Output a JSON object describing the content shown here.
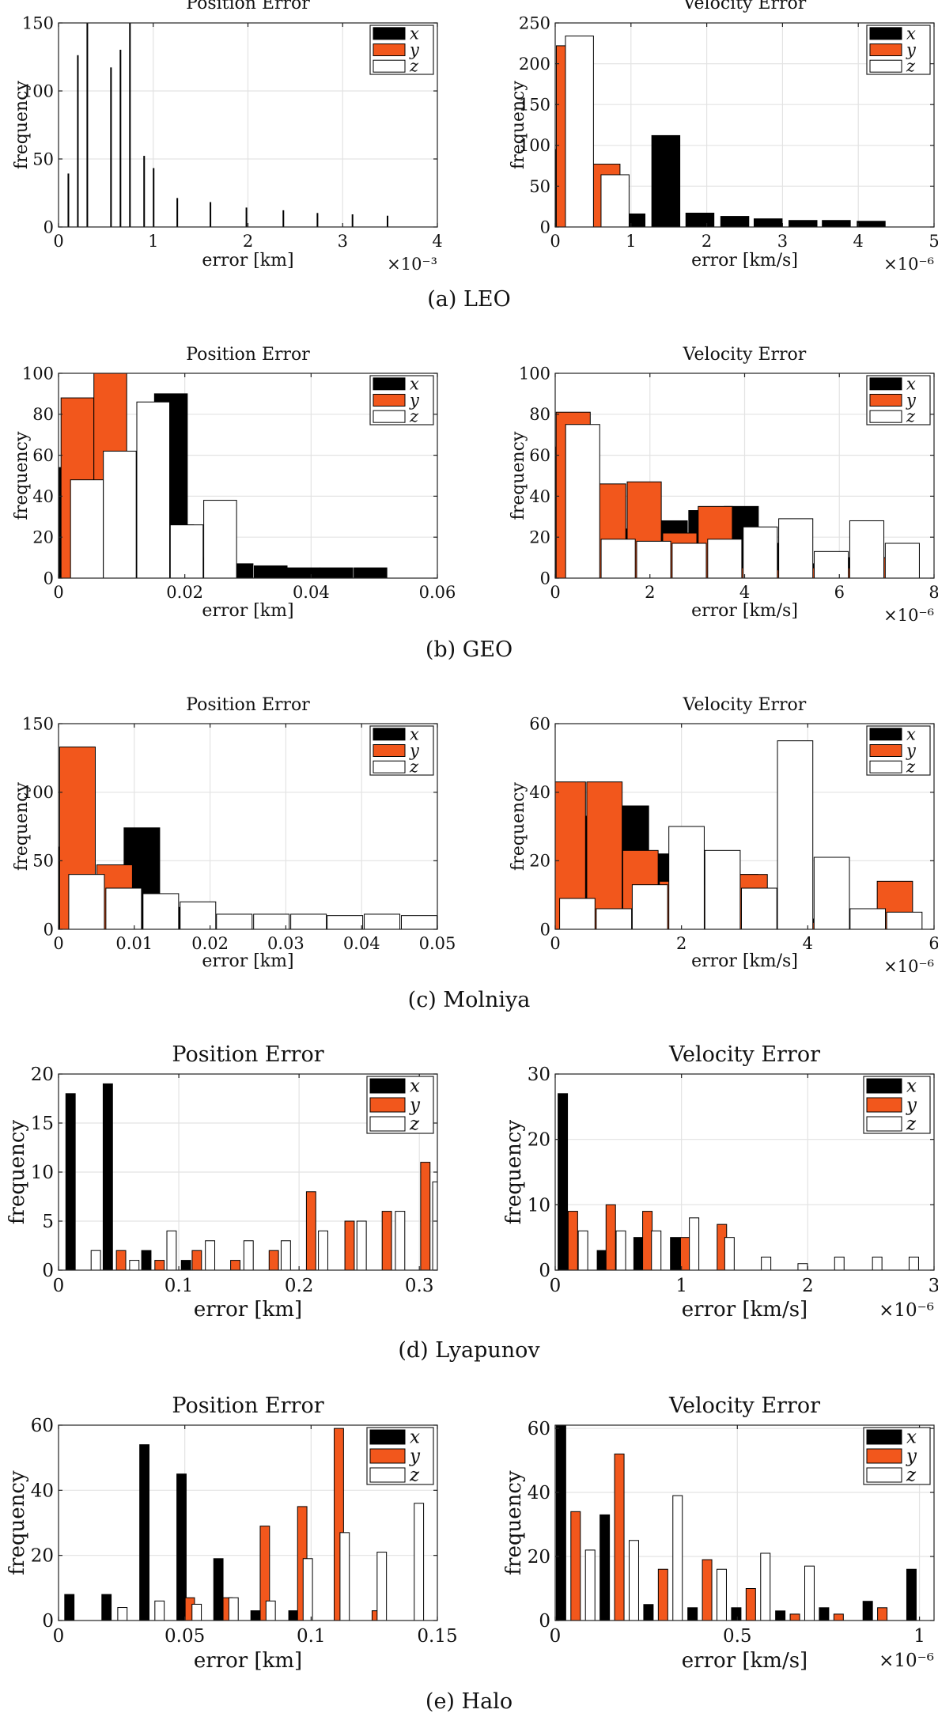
{
  "colors": {
    "x": "#000000",
    "y": "#f2571c",
    "z": "#ffffff",
    "outline": "#000000",
    "grid": "#e3e3e3"
  },
  "captions": [
    "(a) LEO",
    "(b) GEO",
    "(c) Molniya",
    "(d) Lyapunov",
    "(e) Halo"
  ],
  "chart_data": [
    {
      "type": "bar",
      "panel": "(a) LEO",
      "title": "Position Error",
      "xlabel": "error [km]",
      "ylabel": "frequency",
      "x_exponent": "×10⁻³",
      "xlim": [
        0,
        4
      ],
      "ylim": [
        0,
        150
      ],
      "xticks": [
        0,
        1,
        2,
        3,
        4
      ],
      "yticks": [
        0,
        50,
        100,
        150
      ],
      "bin_width": 0.00029,
      "grid": true,
      "legend": "top-right",
      "series": [
        {
          "name": "x",
          "centers": [
            0.1,
            0.55,
            0.9,
            1.25,
            1.6,
            1.98,
            2.37,
            2.73,
            3.1,
            3.47
          ],
          "values": [
            39,
            117,
            52,
            21,
            18,
            14,
            12,
            10,
            9,
            8
          ]
        },
        {
          "name": "y",
          "centers": [
            0.2,
            0.65,
            1.0
          ],
          "values": [
            126,
            130,
            43
          ]
        },
        {
          "name": "z",
          "centers": [
            0.3,
            0.75
          ],
          "values": [
            160,
            160
          ]
        }
      ]
    },
    {
      "type": "bar",
      "panel": "(a) LEO",
      "title": "Velocity Error",
      "xlabel": "error [km/s]",
      "ylabel": "frequency",
      "x_exponent": "×10⁻⁶",
      "xlim": [
        0,
        5
      ],
      "ylim": [
        0,
        250
      ],
      "xticks": [
        0,
        1,
        2,
        3,
        4,
        5
      ],
      "yticks": [
        0,
        50,
        100,
        150,
        200,
        250
      ],
      "bin_width": 0.37,
      "grid": true,
      "legend": "top-right",
      "series": [
        {
          "name": "x",
          "centers": [
            0.09,
            0.55,
            1.0,
            1.46,
            1.91,
            2.37,
            2.81,
            3.27,
            3.71,
            4.17
          ],
          "values": [
            95,
            14,
            16,
            112,
            17,
            13,
            10,
            8,
            8,
            7
          ]
        },
        {
          "name": "y",
          "centers": [
            0.2,
            0.67
          ],
          "values": [
            222,
            77
          ]
        },
        {
          "name": "z",
          "centers": [
            0.32,
            0.79
          ],
          "values": [
            234,
            64
          ]
        }
      ]
    },
    {
      "type": "bar",
      "panel": "(b) GEO",
      "title": "Position Error",
      "xlabel": "error [km]",
      "ylabel": "frequency",
      "x_exponent": "",
      "xlim": [
        0,
        0.06
      ],
      "ylim": [
        0,
        100
      ],
      "xticks": [
        0,
        0.02,
        0.04,
        0.06
      ],
      "yticks": [
        0,
        20,
        40,
        60,
        80,
        100
      ],
      "bin_width": 0.0052,
      "grid": true,
      "legend": "top-right",
      "series": [
        {
          "name": "x",
          "centers": [
            0.0015,
            0.0067,
            0.012,
            0.0178,
            0.023,
            0.0282,
            0.0336,
            0.0388,
            0.044,
            0.0494
          ],
          "values": [
            54,
            34,
            44,
            90,
            10,
            7,
            6,
            5,
            5,
            5
          ]
        },
        {
          "name": "y",
          "centers": [
            0.003,
            0.0082,
            0.0135,
            0.0188
          ],
          "values": [
            88,
            102,
            44,
            26
          ]
        },
        {
          "name": "z",
          "centers": [
            0.0045,
            0.0097,
            0.015,
            0.0203,
            0.0256
          ],
          "values": [
            48,
            62,
            86,
            26,
            38
          ]
        }
      ]
    },
    {
      "type": "bar",
      "panel": "(b) GEO",
      "title": "Velocity Error",
      "xlabel": "error [km/s]",
      "ylabel": "frequency",
      "x_exponent": "×10⁻⁶",
      "xlim": [
        0,
        8
      ],
      "ylim": [
        0,
        100
      ],
      "xticks": [
        0,
        2,
        4,
        6,
        8
      ],
      "yticks": [
        0,
        20,
        40,
        60,
        80,
        100
      ],
      "bin_width": 0.72,
      "grid": true,
      "legend": "top-right",
      "series": [
        {
          "name": "x",
          "centers": [
            0.18,
            0.93,
            1.68,
            2.43,
            3.18,
            3.93,
            4.68,
            5.43,
            6.18,
            6.93
          ],
          "values": [
            64,
            37,
            24,
            28,
            33,
            35,
            17,
            7,
            10,
            5
          ]
        },
        {
          "name": "y",
          "centers": [
            0.38,
            1.13,
            1.88,
            2.63,
            3.38,
            4.13,
            4.88,
            5.63,
            6.38,
            7.13
          ],
          "values": [
            81,
            46,
            47,
            22,
            35,
            5,
            4,
            5,
            5,
            10
          ]
        },
        {
          "name": "z",
          "centers": [
            0.58,
            1.33,
            2.08,
            2.83,
            3.58,
            4.33,
            5.08,
            5.83,
            6.58,
            7.33
          ],
          "values": [
            75,
            19,
            18,
            17,
            19,
            25,
            29,
            13,
            28,
            17
          ]
        }
      ]
    },
    {
      "type": "bar",
      "panel": "(c) Molniya",
      "title": "Position Error",
      "xlabel": "error [km]",
      "ylabel": "frequency",
      "x_exponent": "",
      "xlim": [
        0,
        0.05
      ],
      "ylim": [
        0,
        150
      ],
      "xticks": [
        0,
        0.01,
        0.02,
        0.03,
        0.04,
        0.05
      ],
      "yticks": [
        0,
        50,
        100,
        150
      ],
      "bin_width": 0.0047,
      "grid": true,
      "legend": "top-right",
      "series": [
        {
          "name": "x",
          "centers": [
            0.0013,
            0.0062,
            0.011,
            0.0159
          ],
          "values": [
            60,
            30,
            74,
            16
          ]
        },
        {
          "name": "y",
          "centers": [
            0.0025,
            0.0074
          ],
          "values": [
            133,
            47
          ]
        },
        {
          "name": "z",
          "centers": [
            0.0037,
            0.0086,
            0.0135,
            0.0184,
            0.0232,
            0.0281,
            0.033,
            0.0378,
            0.0427,
            0.0476
          ],
          "values": [
            40,
            30,
            26,
            20,
            11,
            11,
            11,
            10,
            11,
            10
          ]
        }
      ]
    },
    {
      "type": "bar",
      "panel": "(c) Molniya",
      "title": "Velocity Error",
      "xlabel": "error [km/s]",
      "ylabel": "frequency",
      "x_exponent": "×10⁻⁶",
      "xlim": [
        0,
        6
      ],
      "ylim": [
        0,
        60
      ],
      "xticks": [
        0,
        2,
        4,
        6
      ],
      "yticks": [
        0,
        20,
        40,
        60
      ],
      "bin_width": 0.56,
      "grid": true,
      "legend": "top-right",
      "series": [
        {
          "name": "x",
          "centers": [
            0.05,
            0.63,
            1.2,
            1.78,
            2.35,
            2.93,
            3.5,
            4.08
          ],
          "values": [
            39,
            33,
            36,
            22,
            22,
            16,
            9,
            3
          ]
        },
        {
          "name": "y",
          "centers": [
            0.2,
            0.78,
            1.35,
            1.93,
            2.5,
            3.08,
            3.65,
            4.23,
            4.8,
            5.38
          ],
          "values": [
            43,
            43,
            23,
            14,
            13,
            16,
            9,
            2,
            3,
            14
          ]
        },
        {
          "name": "z",
          "centers": [
            0.35,
            0.93,
            1.5,
            2.08,
            2.65,
            3.23,
            3.8,
            4.38,
            4.95,
            5.53
          ],
          "values": [
            9,
            6,
            13,
            30,
            23,
            12,
            55,
            21,
            6,
            5
          ]
        }
      ]
    },
    {
      "type": "bar",
      "panel": "(d) Lyapunov",
      "title": "Position Error",
      "xlabel": "error [km]",
      "ylabel": "frequency",
      "x_exponent": "",
      "xlim": [
        0,
        0.315
      ],
      "ylim": [
        0,
        20
      ],
      "xticks": [
        0,
        0.1,
        0.2,
        0.3
      ],
      "yticks": [
        0,
        5,
        10,
        15,
        20
      ],
      "bin_width": 0.0078,
      "grid": true,
      "legend": "top-right",
      "series": [
        {
          "name": "x",
          "centers": [
            0.01,
            0.041,
            0.073,
            0.106,
            0.138,
            0.169,
            0.201,
            0.232,
            0.264,
            0.295
          ],
          "values": [
            18,
            19,
            2,
            1,
            0,
            0,
            0,
            0,
            0,
            0
          ]
        },
        {
          "name": "y",
          "centers": [
            0.021,
            0.052,
            0.084,
            0.115,
            0.147,
            0.179,
            0.21,
            0.242,
            0.273,
            0.305
          ],
          "values": [
            0,
            2,
            1,
            2,
            1,
            2,
            8,
            5,
            6,
            11
          ]
        },
        {
          "name": "z",
          "centers": [
            0.031,
            0.063,
            0.094,
            0.126,
            0.158,
            0.189,
            0.22,
            0.252,
            0.284,
            0.315
          ],
          "values": [
            2,
            1,
            4,
            3,
            3,
            3,
            4,
            5,
            6,
            9
          ]
        }
      ]
    },
    {
      "type": "bar",
      "panel": "(d) Lyapunov",
      "title": "Velocity Error",
      "xlabel": "error [km/s]",
      "ylabel": "frequency",
      "x_exponent": "×10⁻⁶",
      "xlim": [
        0,
        3
      ],
      "ylim": [
        0,
        30
      ],
      "xticks": [
        0,
        1,
        2,
        3
      ],
      "yticks": [
        0,
        10,
        20,
        30
      ],
      "bin_width": 0.075,
      "grid": true,
      "legend": "top-right",
      "series": [
        {
          "name": "x",
          "centers": [
            0.06,
            0.37,
            0.66,
            0.95
          ],
          "values": [
            27,
            3,
            5,
            5
          ]
        },
        {
          "name": "y",
          "centers": [
            0.14,
            0.44,
            0.73,
            1.03,
            1.32
          ],
          "values": [
            9,
            10,
            9,
            5,
            7
          ]
        },
        {
          "name": "z",
          "centers": [
            0.22,
            0.52,
            0.8,
            1.1,
            1.38,
            1.67,
            1.96,
            2.25,
            2.55,
            2.84
          ],
          "values": [
            6,
            6,
            6,
            8,
            5,
            2,
            1,
            2,
            2,
            2
          ]
        }
      ]
    },
    {
      "type": "bar",
      "panel": "(e) Halo",
      "title": "Position Error",
      "xlabel": "error [km]",
      "ylabel": "frequency",
      "x_exponent": "",
      "xlim": [
        0,
        0.15
      ],
      "ylim": [
        0,
        60
      ],
      "xticks": [
        0,
        0.05,
        0.1,
        0.15
      ],
      "yticks": [
        0,
        20,
        40,
        60
      ],
      "bin_width": 0.0037,
      "grid": true,
      "legend": "top-right",
      "series": [
        {
          "name": "x",
          "centers": [
            0.0043,
            0.019,
            0.034,
            0.0487,
            0.0633,
            0.078,
            0.093
          ],
          "values": [
            8,
            8,
            54,
            45,
            19,
            3,
            3
          ]
        },
        {
          "name": "y",
          "centers": [
            0.052,
            0.067,
            0.0817,
            0.0965,
            0.111,
            0.126
          ],
          "values": [
            7,
            7,
            29,
            35,
            59,
            3
          ]
        },
        {
          "name": "z",
          "centers": [
            0.0253,
            0.04,
            0.0547,
            0.0693,
            0.084,
            0.0987,
            0.1133,
            0.128,
            0.1427
          ],
          "values": [
            4,
            6,
            5,
            7,
            6,
            19,
            27,
            21,
            36
          ]
        }
      ]
    },
    {
      "type": "bar",
      "panel": "(e) Halo",
      "title": "Velocity Error",
      "xlabel": "error [km/s]",
      "ylabel": "frequency",
      "x_exponent": "×10⁻⁶",
      "xlim": [
        0,
        1.04
      ],
      "ylim": [
        0,
        61
      ],
      "xticks": [
        0,
        0.5,
        1
      ],
      "yticks": [
        0,
        20,
        40,
        60
      ],
      "bin_width": 0.026,
      "grid": true,
      "legend": "top-right",
      "series": [
        {
          "name": "x",
          "centers": [
            0.016,
            0.136,
            0.256,
            0.377,
            0.497,
            0.618,
            0.738,
            0.858,
            0.978
          ],
          "values": [
            62,
            33,
            5,
            4,
            4,
            3,
            4,
            6,
            16
          ]
        },
        {
          "name": "y",
          "centers": [
            0.056,
            0.176,
            0.296,
            0.417,
            0.537,
            0.658,
            0.778,
            0.898
          ],
          "values": [
            34,
            52,
            16,
            19,
            10,
            2,
            2,
            4
          ]
        },
        {
          "name": "z",
          "centers": [
            0.096,
            0.216,
            0.336,
            0.457,
            0.577,
            0.698
          ],
          "values": [
            22,
            25,
            39,
            16,
            21,
            17
          ]
        }
      ]
    }
  ]
}
